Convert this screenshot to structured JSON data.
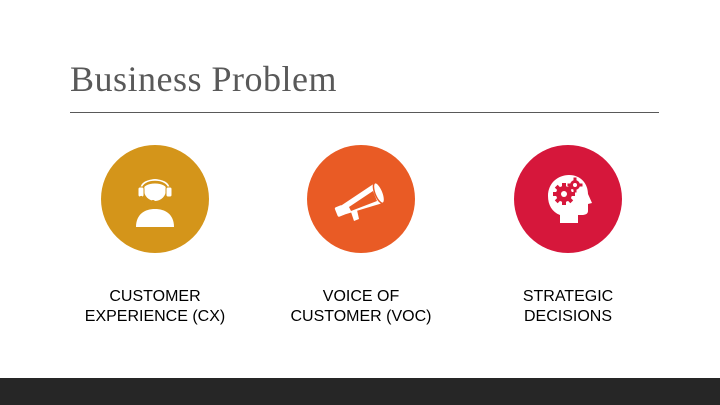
{
  "slide": {
    "title": "Business Problem"
  },
  "items": [
    {
      "line1": "CUSTOMER",
      "line2": "EXPERIENCE (CX)",
      "icon": "customer-support-headset-icon",
      "color": "#D4951A"
    },
    {
      "line1": "VOICE OF",
      "line2": "CUSTOMER (VOC)",
      "icon": "megaphone-icon",
      "color": "#E95B25"
    },
    {
      "line1": "STRATEGIC",
      "line2": "DECISIONS",
      "icon": "head-gears-icon",
      "color": "#D6173B"
    }
  ],
  "colors": {
    "title_text": "#595959",
    "footer_bar": "#262626",
    "icon_fill": "#FFFFFF"
  }
}
